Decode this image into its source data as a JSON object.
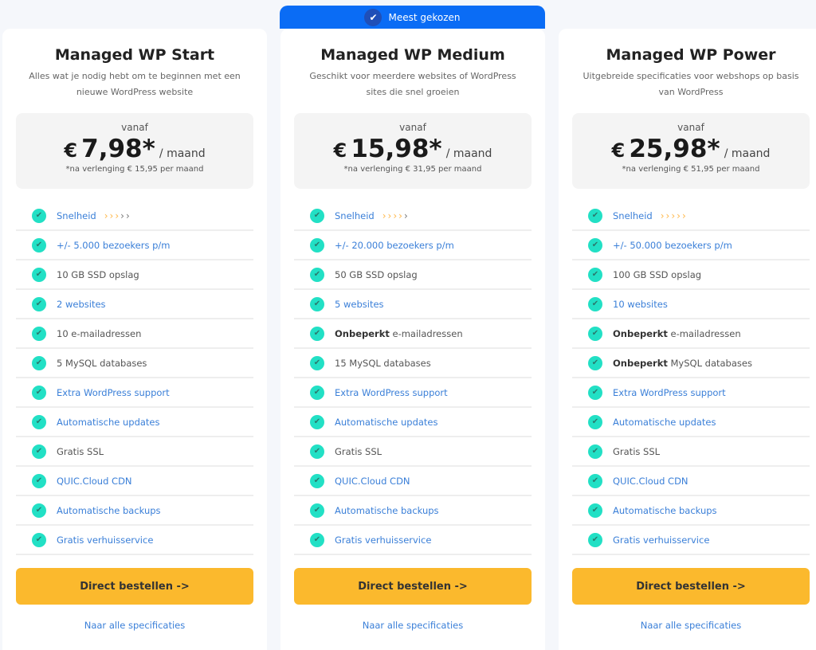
{
  "badge": {
    "label": "Meest gekozen",
    "icon": "check-icon",
    "color": "#0a6cf5"
  },
  "plans": [
    {
      "title": "Managed WP Start",
      "desc": "Alles wat je nodig hebt om te beginnen met een nieuwe WordPress website",
      "vanaf": "vanaf",
      "currency": "€",
      "price": "7,98*",
      "per": "/ maand",
      "renew": "*na verlenging € 15,95 per maand",
      "speed": 3,
      "features": [
        {
          "text": "Snelheid",
          "link": true
        },
        {
          "text": "+/- 5.000 bezoekers p/m",
          "link": true
        },
        {
          "text": "10 GB SSD opslag"
        },
        {
          "text": "2 websites",
          "link": true
        },
        {
          "text": "10 e-mailadressen"
        },
        {
          "text": "5 MySQL databases"
        },
        {
          "text": "Extra WordPress support",
          "link": true
        },
        {
          "text": "Automatische updates",
          "link": true
        },
        {
          "text": "Gratis SSL"
        },
        {
          "text": "QUIC.Cloud CDN",
          "link": true
        },
        {
          "text": "Automatische backups",
          "link": true
        },
        {
          "text": "Gratis verhuisservice",
          "link": true
        }
      ],
      "button": "Direct bestellen ->",
      "spec_link": "Naar alle specificaties"
    },
    {
      "title": "Managed WP Medium",
      "desc": "Geschikt voor meerdere websites of WordPress sites die snel groeien",
      "vanaf": "vanaf",
      "currency": "€",
      "price": "15,98*",
      "per": "/ maand",
      "renew": "*na verlenging € 31,95 per maand",
      "speed": 4,
      "features": [
        {
          "text": "Snelheid",
          "link": true
        },
        {
          "text": "+/- 20.000 bezoekers p/m",
          "link": true
        },
        {
          "text": "50 GB SSD opslag"
        },
        {
          "text": "5 websites",
          "link": true
        },
        {
          "bold": "Onbeperkt",
          "text": " e-mailadressen"
        },
        {
          "text": "15 MySQL databases"
        },
        {
          "text": "Extra WordPress support",
          "link": true
        },
        {
          "text": "Automatische updates",
          "link": true
        },
        {
          "text": "Gratis SSL"
        },
        {
          "text": "QUIC.Cloud CDN",
          "link": true
        },
        {
          "text": "Automatische backups",
          "link": true
        },
        {
          "text": "Gratis verhuisservice",
          "link": true
        }
      ],
      "button": "Direct bestellen ->",
      "spec_link": "Naar alle specificaties"
    },
    {
      "title": "Managed WP Power",
      "desc": "Uitgebreide specificaties voor webshops op basis van WordPress",
      "vanaf": "vanaf",
      "currency": "€",
      "price": "25,98*",
      "per": "/ maand",
      "renew": "*na verlenging € 51,95 per maand",
      "speed": 5,
      "features": [
        {
          "text": "Snelheid",
          "link": true
        },
        {
          "text": "+/- 50.000 bezoekers p/m",
          "link": true
        },
        {
          "text": "100 GB SSD opslag"
        },
        {
          "text": "10 websites",
          "link": true
        },
        {
          "bold": "Onbeperkt",
          "text": " e-mailadressen"
        },
        {
          "bold": "Onbeperkt",
          "text": " MySQL databases"
        },
        {
          "text": "Extra WordPress support",
          "link": true
        },
        {
          "text": "Automatische updates",
          "link": true
        },
        {
          "text": "Gratis SSL"
        },
        {
          "text": "QUIC.Cloud CDN",
          "link": true
        },
        {
          "text": "Automatische backups",
          "link": true
        },
        {
          "text": "Gratis verhuisservice",
          "link": true
        }
      ],
      "button": "Direct bestellen ->",
      "spec_link": "Naar alle specificaties"
    }
  ],
  "speed_max": 5,
  "colors": {
    "button": "#fbb92d",
    "check": "#22e0c5",
    "link": "#3a7fd8"
  }
}
